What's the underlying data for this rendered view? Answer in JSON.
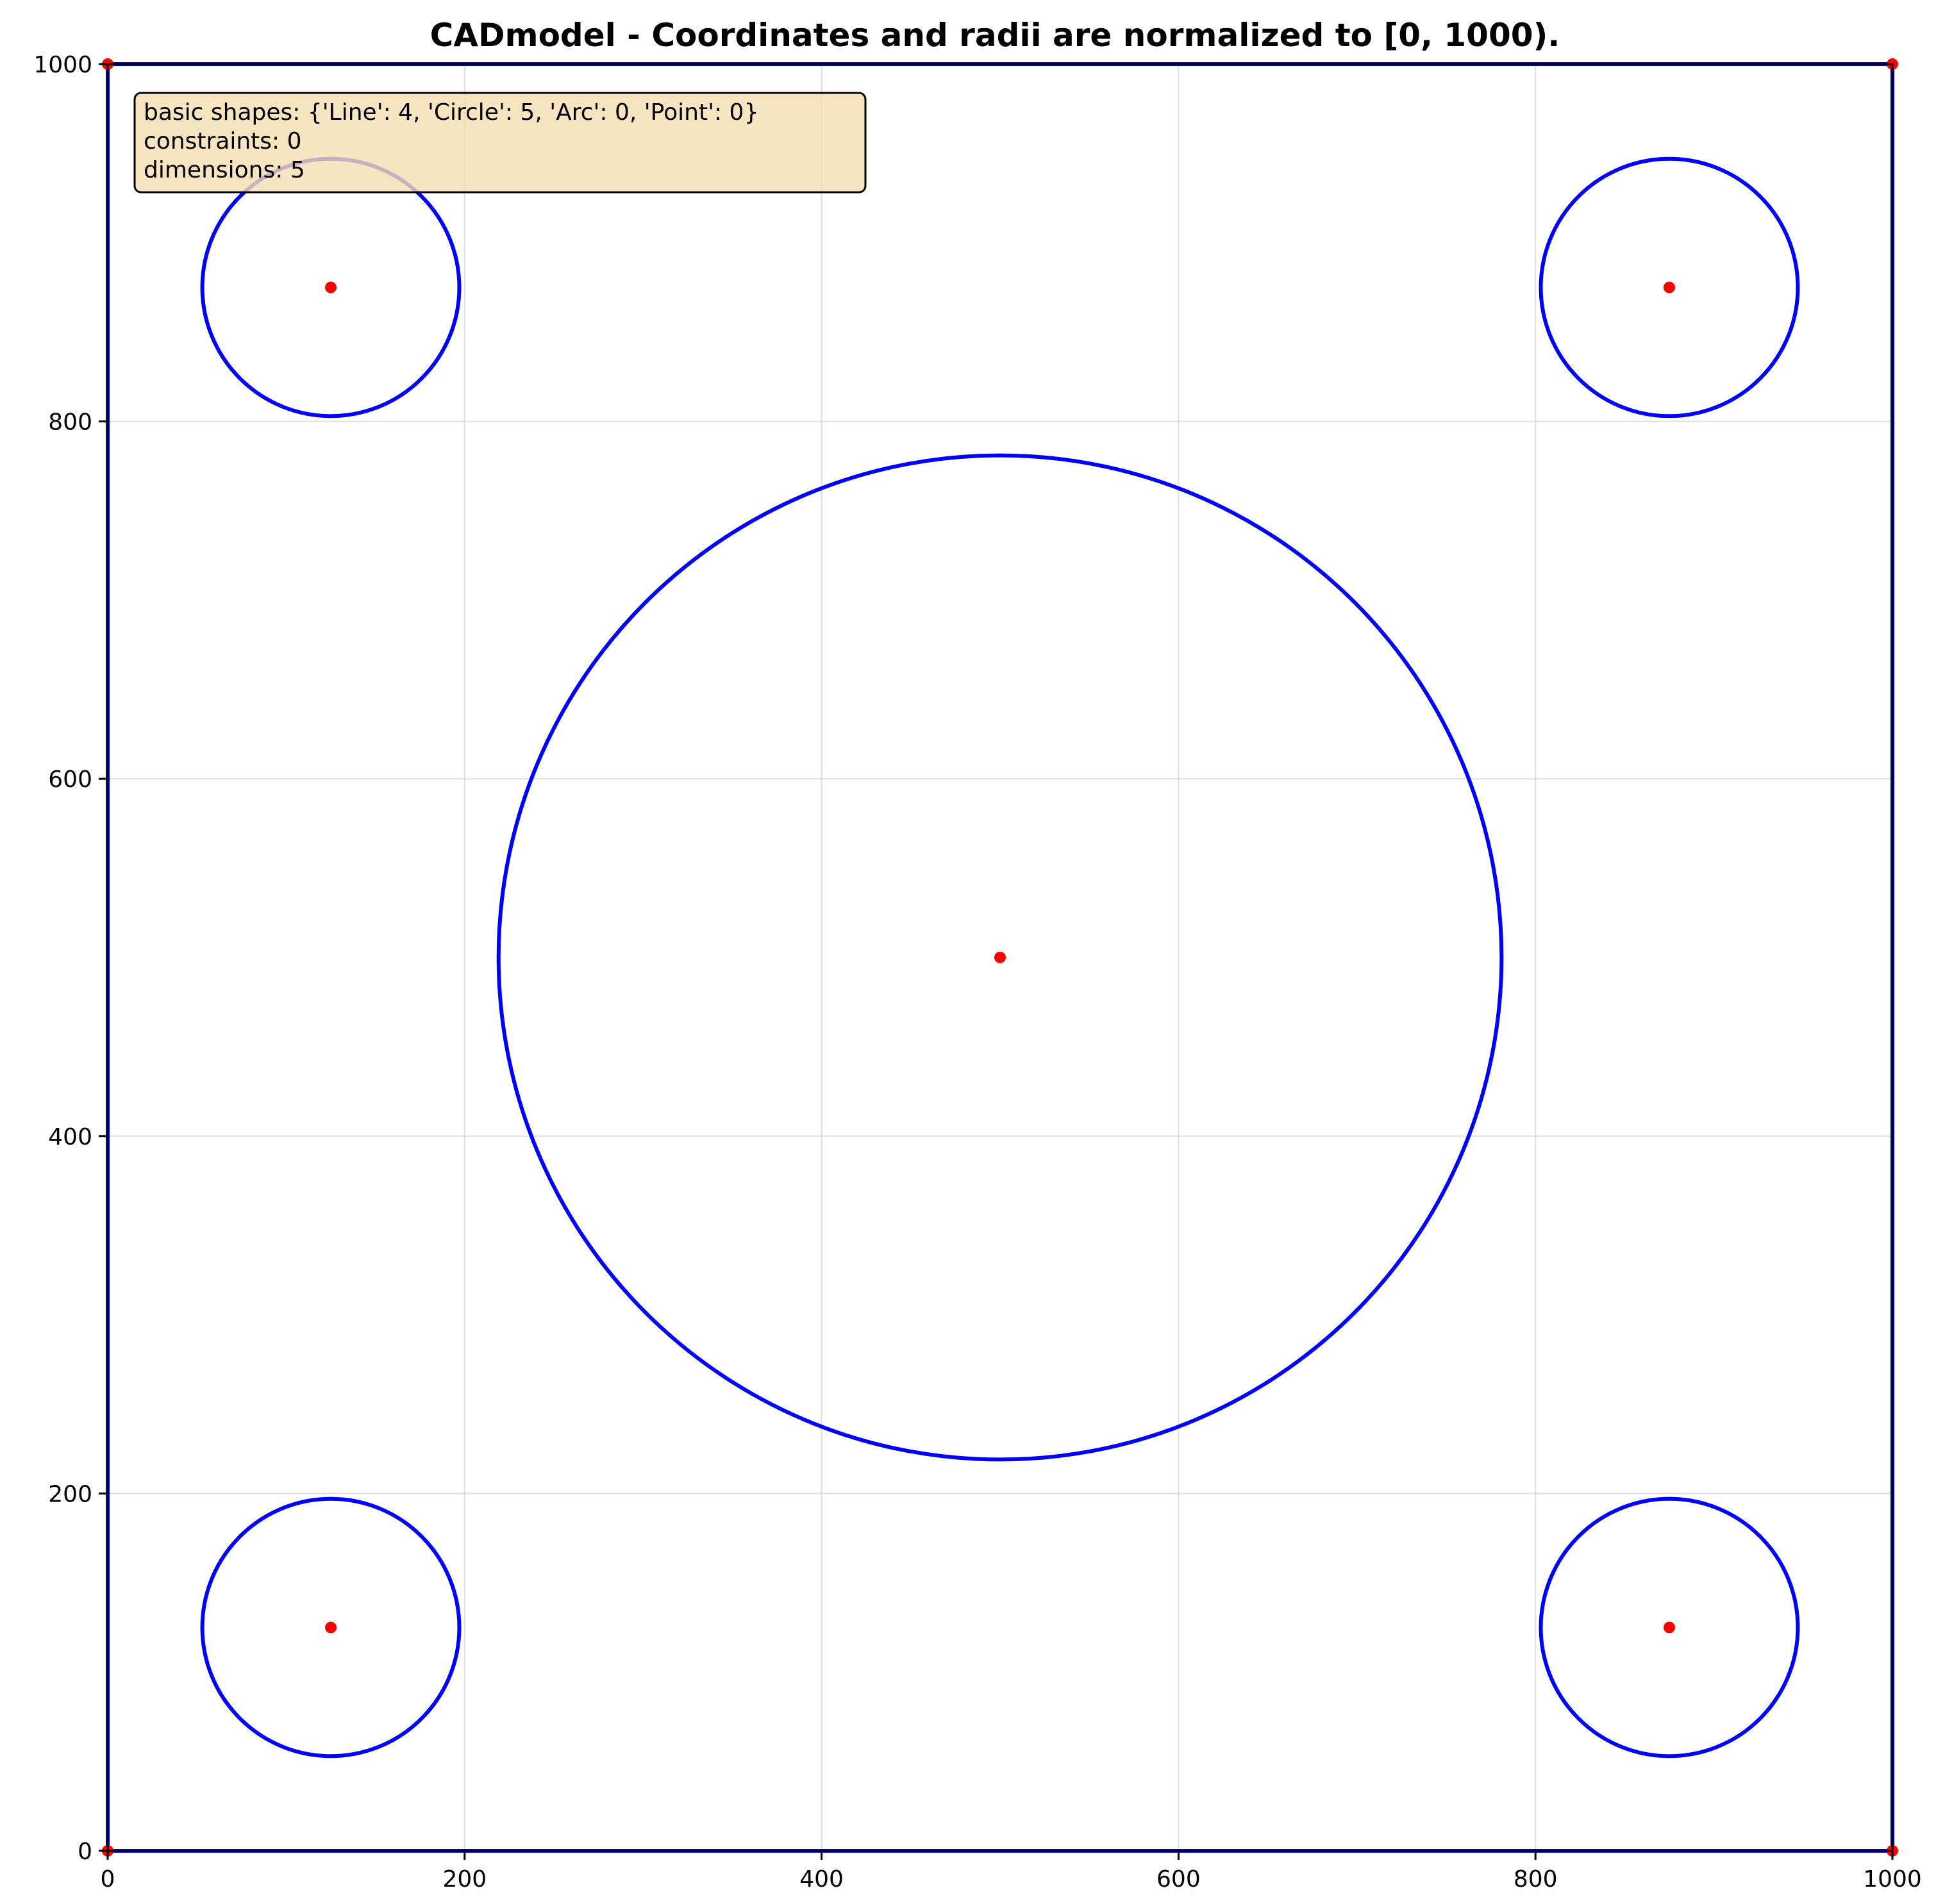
{
  "title": "CADmodel - Coordinates and radii are normalized to [0, 1000).",
  "info_box": {
    "lines": [
      "basic shapes: {'Line': 4, 'Circle': 5, 'Arc': 0, 'Point': 0}",
      "constraints: 0",
      "dimensions: 5"
    ],
    "background": "#f5deb3",
    "border": "#000000"
  },
  "axes": {
    "xlim": [
      0,
      1000
    ],
    "ylim": [
      0,
      1000
    ],
    "x_ticks": [
      0,
      200,
      400,
      600,
      800,
      1000
    ],
    "y_ticks": [
      0,
      200,
      400,
      600,
      800,
      1000
    ],
    "grid": true
  },
  "colors": {
    "shape": "#0000ff",
    "point": "#ff0000",
    "grid": "#dddddd",
    "axis": "#000000"
  },
  "chart_data": {
    "type": "scatter",
    "title": "CADmodel - Coordinates and radii are normalized to [0, 1000).",
    "xlim": [
      0,
      1000
    ],
    "ylim": [
      0,
      1000
    ],
    "grid": true,
    "lines": [
      {
        "start": [
          0,
          0
        ],
        "end": [
          1000,
          0
        ]
      },
      {
        "start": [
          1000,
          0
        ],
        "end": [
          1000,
          1000
        ]
      },
      {
        "start": [
          1000,
          1000
        ],
        "end": [
          0,
          1000
        ]
      },
      {
        "start": [
          0,
          1000
        ],
        "end": [
          0,
          0
        ]
      }
    ],
    "circles": [
      {
        "center": [
          500,
          500
        ],
        "radius": 281
      },
      {
        "center": [
          125,
          125
        ],
        "radius": 72
      },
      {
        "center": [
          875,
          125
        ],
        "radius": 72
      },
      {
        "center": [
          125,
          875
        ],
        "radius": 72
      },
      {
        "center": [
          875,
          875
        ],
        "radius": 72
      }
    ],
    "points": [
      [
        500,
        500
      ],
      [
        125,
        125
      ],
      [
        875,
        125
      ],
      [
        125,
        875
      ],
      [
        875,
        875
      ],
      [
        0,
        0
      ],
      [
        1000,
        0
      ],
      [
        1000,
        1000
      ],
      [
        0,
        1000
      ]
    ]
  }
}
